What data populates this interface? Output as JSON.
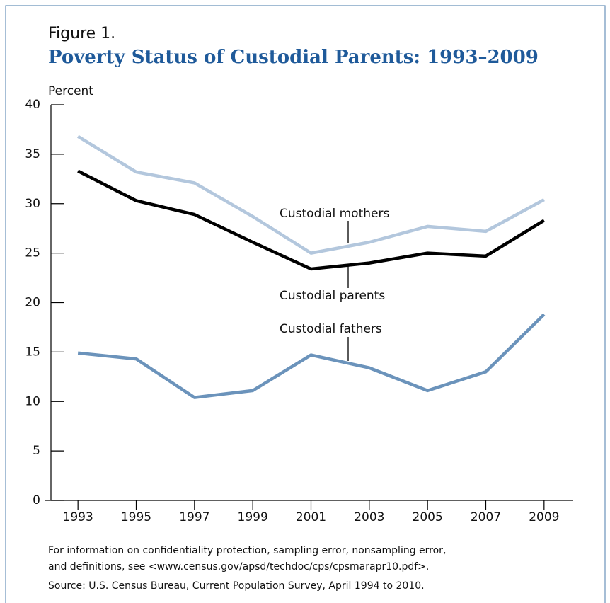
{
  "chart_data": {
    "type": "line",
    "label": "Figure 1.",
    "title": "Poverty Status of Custodial Parents: 1993–2009",
    "y_label": "Percent",
    "x": [
      1993,
      1995,
      1997,
      1999,
      2001,
      2003,
      2005,
      2007,
      2009
    ],
    "series": [
      {
        "name": "Custodial mothers",
        "color": "#b3c7dd",
        "values": [
          36.8,
          33.2,
          32.1,
          28.7,
          25.0,
          26.1,
          27.7,
          27.2,
          30.4
        ]
      },
      {
        "name": "Custodial parents",
        "color": "#000000",
        "values": [
          33.3,
          30.3,
          28.9,
          26.1,
          23.4,
          24.0,
          25.0,
          24.7,
          28.3
        ]
      },
      {
        "name": "Custodial fathers",
        "color": "#6b93bb",
        "values": [
          14.9,
          14.3,
          10.4,
          11.1,
          14.7,
          13.4,
          11.1,
          13.0,
          18.8
        ]
      }
    ],
    "xlim": [
      1992,
      2010
    ],
    "xticks": [
      1993,
      1995,
      1997,
      1999,
      2001,
      2003,
      2005,
      2007,
      2009
    ],
    "ylim": [
      0,
      40
    ],
    "yticks": [
      0,
      5,
      10,
      15,
      20,
      25,
      30,
      35,
      40
    ],
    "notes": [
      "For information on confidentiality protection, sampling error, nonsampling error,",
      "and definitions, see <www.census.gov/apsd/techdoc/cps/cpsmarapr10.pdf>.",
      "Source: U.S. Census Bureau, Current Population Survey, April 1994 to 2010."
    ]
  }
}
